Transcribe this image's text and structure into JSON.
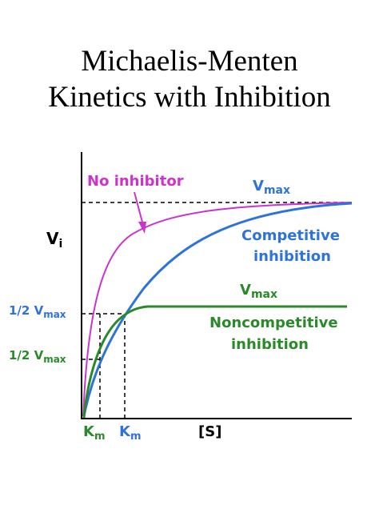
{
  "title": {
    "line1": "Michaelis-Menten",
    "line2": "Kinetics with Inhibition"
  },
  "colors": {
    "no_inhibitor": "#cc33cc",
    "competitive": "#2f73d9",
    "noncompetitive": "#2a8a2a",
    "axis": "#000000"
  },
  "axes": {
    "y_label_main": "V",
    "y_label_sub": "i",
    "x_label": "[S]"
  },
  "labels": {
    "no_inhibitor": "No inhibitor",
    "vmax_top_main": "V",
    "vmax_top_sub": "max",
    "competitive_line1": "Competitive",
    "competitive_line2": "inhibition",
    "vmax_mid_main": "V",
    "vmax_mid_sub": "max",
    "noncomp_line1": "Noncompetitive",
    "noncomp_line2": "inhibition",
    "half_vmax_1_prefix": "1/2 V",
    "half_vmax_1_sub": "max",
    "half_vmax_2_prefix": "1/2 V",
    "half_vmax_2_sub": "max",
    "km_green_main": "K",
    "km_green_sub": "m",
    "km_blue_main": "K",
    "km_blue_sub": "m"
  }
}
